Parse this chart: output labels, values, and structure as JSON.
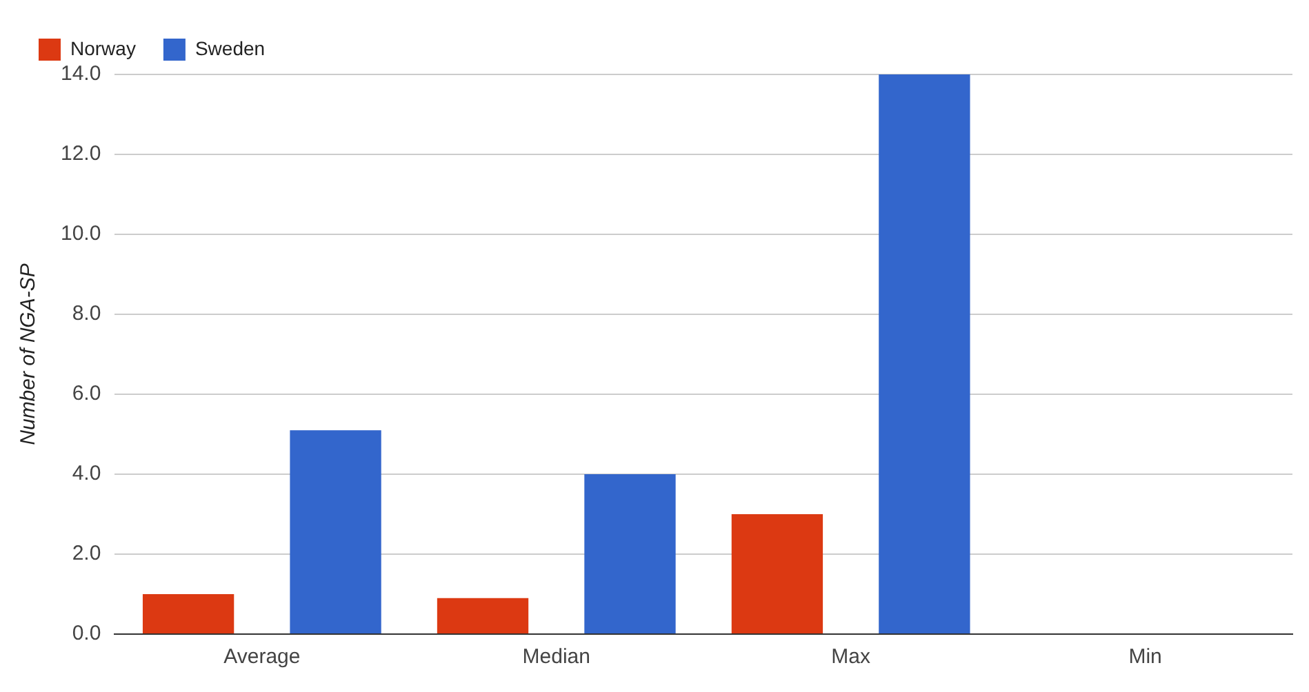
{
  "chart_data": {
    "type": "bar",
    "ylabel": "Number of NGA-SP",
    "categories": [
      "Average",
      "Median",
      "Max",
      "Min"
    ],
    "series": [
      {
        "name": "Norway",
        "color": "#dc3912",
        "values": [
          1.0,
          0.9,
          3.0,
          0
        ]
      },
      {
        "name": "Sweden",
        "color": "#3366cc",
        "values": [
          5.1,
          4.0,
          14.0,
          0
        ]
      }
    ],
    "ylim": [
      0,
      14
    ],
    "yticks": [
      {
        "value": 0,
        "label": "0.0"
      },
      {
        "value": 2,
        "label": "2.0"
      },
      {
        "value": 4,
        "label": "4.0"
      },
      {
        "value": 6,
        "label": "6.0"
      },
      {
        "value": 8,
        "label": "8.0"
      },
      {
        "value": 10,
        "label": "10.0"
      },
      {
        "value": 12,
        "label": "12.0"
      },
      {
        "value": 14,
        "label": "14.0"
      }
    ],
    "grid": "y",
    "legend": "top left"
  }
}
